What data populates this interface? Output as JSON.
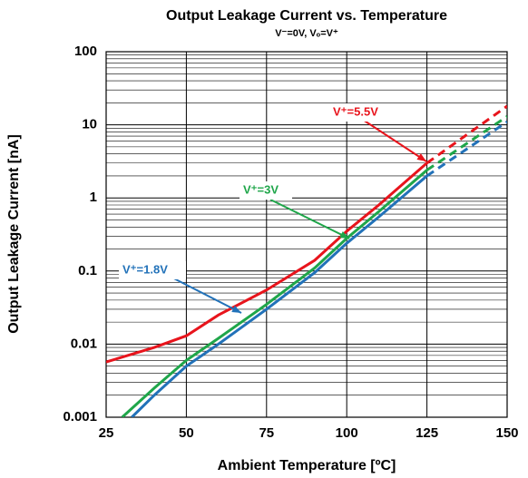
{
  "chart_data": {
    "type": "line",
    "title": "Output Leakage Current vs. Temperature",
    "subtitle": "V⁻=0V, Vₒ=V⁺",
    "x_label": "Ambient Temperature [ºC]",
    "y_label": "Output Leakage Current [nA]",
    "xlim": [
      25,
      150
    ],
    "xticks": [
      25,
      50,
      75,
      100,
      125,
      150
    ],
    "ylim": [
      0.001,
      100
    ],
    "yticks": [
      0.001,
      0.01,
      0.1,
      1,
      10,
      100
    ],
    "y_log": true,
    "grid": true,
    "dashed_after_x": 125,
    "series": [
      {
        "name": "V⁺=5.5V",
        "color": "#e8141c",
        "x": [
          25,
          40,
          50,
          60,
          75,
          90,
          100,
          110,
          125,
          150
        ],
        "values": [
          0.0057,
          0.009,
          0.013,
          0.025,
          0.055,
          0.14,
          0.35,
          0.8,
          3,
          18
        ]
      },
      {
        "name": "V⁺=3V",
        "color": "#1fa64a",
        "x": [
          30,
          40,
          50,
          60,
          75,
          90,
          100,
          110,
          125,
          150
        ],
        "values": [
          0.001,
          0.0025,
          0.006,
          0.012,
          0.035,
          0.11,
          0.28,
          0.65,
          2.4,
          13
        ]
      },
      {
        "name": "V⁺=1.8V",
        "color": "#2272b9",
        "x": [
          33,
          40,
          50,
          60,
          75,
          90,
          100,
          110,
          125,
          150
        ],
        "values": [
          0.001,
          0.002,
          0.005,
          0.01,
          0.03,
          0.095,
          0.24,
          0.55,
          2,
          11
        ]
      }
    ]
  }
}
